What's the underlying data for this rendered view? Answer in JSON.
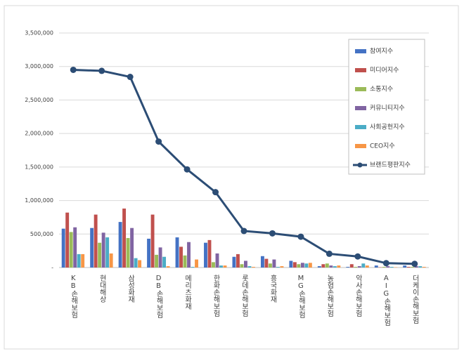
{
  "chart_data": {
    "type": "bar",
    "categories": [
      "KB손해보험",
      "현대해상",
      "삼성화재",
      "DB손해보험",
      "메리츠화재",
      "한화손해보험",
      "롯데손해보험",
      "흥국화재",
      "MG손해보험",
      "농협손해보험",
      "악사손해보험",
      "AIG손해보험",
      "더케이손해보험"
    ],
    "series": [
      {
        "name": "참여지수",
        "color": "#4472c4",
        "values": [
          580000,
          590000,
          680000,
          430000,
          450000,
          370000,
          160000,
          170000,
          100000,
          20000,
          10000,
          30000,
          30000
        ]
      },
      {
        "name": "미디어지수",
        "color": "#c0504d",
        "values": [
          820000,
          790000,
          880000,
          790000,
          310000,
          410000,
          200000,
          130000,
          80000,
          50000,
          50000,
          5000,
          10000
        ]
      },
      {
        "name": "소통지수",
        "color": "#9bbb59",
        "values": [
          530000,
          370000,
          440000,
          190000,
          180000,
          80000,
          50000,
          60000,
          50000,
          60000,
          10000,
          10000,
          10000
        ]
      },
      {
        "name": "커뮤니티지수",
        "color": "#8064a2",
        "values": [
          600000,
          520000,
          590000,
          300000,
          380000,
          210000,
          100000,
          120000,
          70000,
          30000,
          20000,
          20000,
          20000
        ]
      },
      {
        "name": "사회공헌지수",
        "color": "#4bacc6",
        "values": [
          200000,
          450000,
          140000,
          160000,
          10000,
          30000,
          20000,
          10000,
          60000,
          20000,
          60000,
          10000,
          20000
        ]
      },
      {
        "name": "CEO지수",
        "color": "#f79646",
        "values": [
          200000,
          210000,
          110000,
          20000,
          120000,
          30000,
          10000,
          20000,
          70000,
          30000,
          30000,
          5000,
          10000
        ]
      },
      {
        "name": "브랜드평판지수",
        "color": "#2c4d75",
        "type": "line",
        "values": [
          2950000,
          2935000,
          2845000,
          1880000,
          1465000,
          1125000,
          545000,
          510000,
          460000,
          205000,
          165000,
          65000,
          55000
        ]
      }
    ],
    "ylim": [
      0,
      3500000
    ],
    "yticks": [
      {
        "value": 0,
        "label": "-"
      },
      {
        "value": 500000,
        "label": "500,000"
      },
      {
        "value": 1000000,
        "label": "1,000,000"
      },
      {
        "value": 1500000,
        "label": "1,500,000"
      },
      {
        "value": 2000000,
        "label": "2,000,000"
      },
      {
        "value": 2500000,
        "label": "2,500,000"
      },
      {
        "value": 3000000,
        "label": "3,000,000"
      },
      {
        "value": 3500000,
        "label": "3,500,000"
      }
    ],
    "grid": true,
    "legend": "upper right"
  }
}
